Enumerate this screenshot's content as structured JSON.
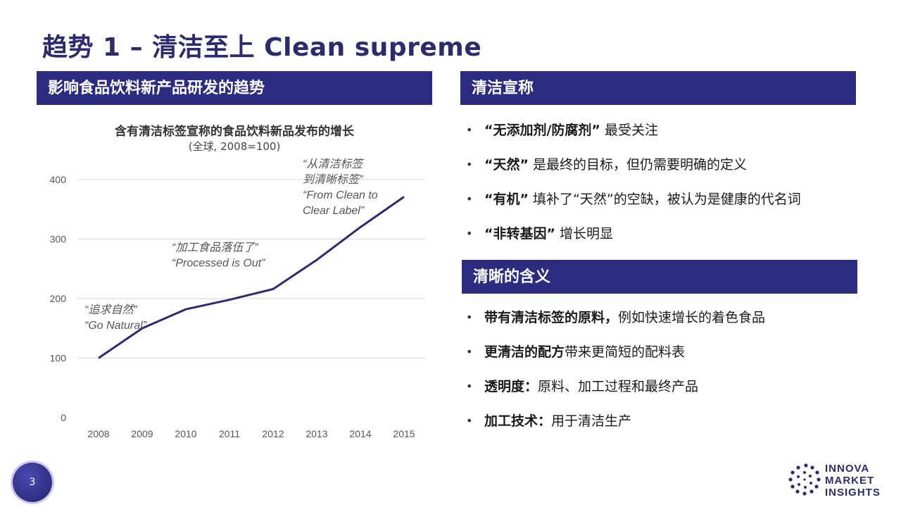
{
  "title": "趋势 1 – 清洁至上 Clean supreme",
  "left_panel": {
    "header": "影响食品饮料新产品研发的趋势"
  },
  "claims": {
    "header": "清洁宣称",
    "items": [
      {
        "bold": "“无添加剂/防腐剂”",
        "text": " 最受关注"
      },
      {
        "bold": "“天然”",
        "text": " 是最终的目标，但仍需要明确的定义"
      },
      {
        "bold": "“有机”",
        "text": " 填补了“天然”的空缺，被认为是健康的代名词"
      },
      {
        "bold": "“非转基因”",
        "text": " 增长明显"
      }
    ]
  },
  "meaning": {
    "header": "清晰的含义",
    "items": [
      {
        "bold": "带有清洁标签的原料，",
        "text": "例如快速增长的着色食品"
      },
      {
        "bold": "更清洁的配方",
        "text": "带来更简短的配料表"
      },
      {
        "bold": "透明度：",
        "text": "原料、加工过程和最终产品"
      },
      {
        "bold": "加工技术：",
        "text": "用于清洁生产"
      }
    ]
  },
  "bullet_char": "•",
  "page_number": "3",
  "logo": {
    "line1": "INNOVA",
    "line2": "MARKET",
    "line3": "INSIGHTS"
  },
  "colors": {
    "header_bg": "#2b2b80",
    "line": "#2b2b6e",
    "grid": "#d9d9d9",
    "annotation": "#555555"
  },
  "chart_data": {
    "type": "line",
    "title": "含有清洁标签宣称的食品饮料新品发布的增长",
    "subtitle": "(全球, 2008=100)",
    "x": [
      "2008",
      "2009",
      "2010",
      "2011",
      "2012",
      "2013",
      "2014",
      "2015"
    ],
    "values": [
      100,
      150,
      182,
      198,
      216,
      265,
      320,
      371
    ],
    "ylim": [
      0,
      400
    ],
    "yticks": [
      0,
      100,
      200,
      300,
      400
    ],
    "grid": true,
    "annotations": [
      {
        "x": "2008",
        "y": 175,
        "lines": [
          "“追求自然”",
          "“Go Natural”"
        ]
      },
      {
        "x": "2010",
        "y": 280,
        "lines": [
          "“加工食品落伍了”",
          "“Processed is Out”"
        ]
      },
      {
        "x": "2013",
        "y": 420,
        "lines": [
          "“从清洁标签",
          "到清晰标签”",
          "“From Clean to",
          "Clear Label”"
        ]
      }
    ]
  }
}
